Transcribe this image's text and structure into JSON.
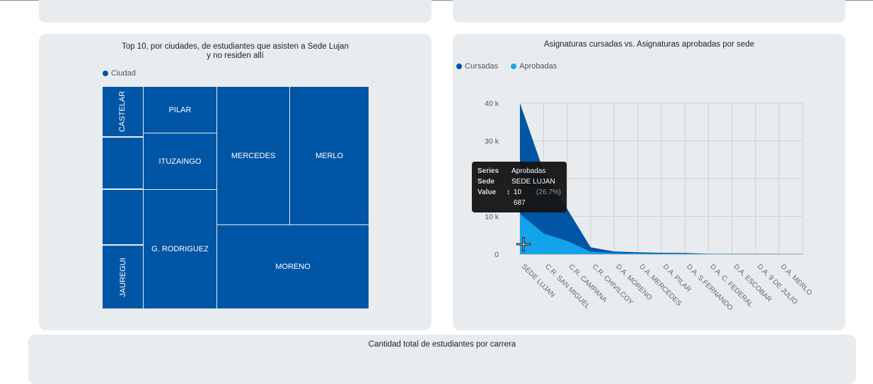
{
  "treemap_card": {
    "title": "Top 10, por ciudades, de estudiantes que asisten a Sede Lujan y no residen allí",
    "legend": [
      {
        "label": "Ciudad",
        "color": "#0055a5"
      }
    ],
    "cells": [
      {
        "label": "CASTELAR"
      },
      {
        "label": ""
      },
      {
        "label": ""
      },
      {
        "label": "JAUREGUI"
      },
      {
        "label": "PILAR"
      },
      {
        "label": "ITUZAINGO"
      },
      {
        "label": "G. RODRIGUEZ"
      },
      {
        "label": "MERCEDES"
      },
      {
        "label": "MERLO"
      },
      {
        "label": "MORENO"
      }
    ]
  },
  "area_card": {
    "title": "Asignaturas cursadas vs. Asignaturas aprobadas por sede",
    "legend": [
      {
        "label": "Cursadas",
        "color": "#0055a5"
      },
      {
        "label": "Aprobadas",
        "color": "#13a3ea"
      }
    ],
    "tooltip": {
      "series_key": "Series",
      "series_val": "Aprobadas",
      "sede_key": "Sede",
      "sede_val": "SEDE LUJAN",
      "value_key": "Value",
      "value_val": "10 687",
      "pct": "(26.7%)",
      "arrow": "↕"
    }
  },
  "bottom_card": {
    "title": "Cantidad total de estudiantes por carrera"
  },
  "chart_data": {
    "type": "area",
    "title": "Asignaturas cursadas vs. Asignaturas aprobadas por sede",
    "categories": [
      "SEDE LUJAN",
      "C.R. SAN MIGUEL",
      "C.R. CAMPANA",
      "C.R. CHIVILCOY",
      "D.A. MORENO",
      "D.A. MERCEDES",
      "D.A. PILAR",
      "D.A. S.FERNANDO",
      "D.A. C. FEDERAL",
      "D.A. ESCOBAR",
      "D.A. 9 DE JULIO",
      "D.A. MERLO"
    ],
    "series": [
      {
        "name": "Cursadas",
        "color": "#0055a5",
        "values": [
          40000,
          22000,
          12000,
          1800,
          700,
          500,
          350,
          300,
          100,
          80,
          50,
          30
        ]
      },
      {
        "name": "Aprobadas",
        "color": "#13a3ea",
        "values": [
          10687,
          5500,
          3500,
          600,
          300,
          200,
          150,
          120,
          50,
          40,
          20,
          10
        ]
      }
    ],
    "yticks": [
      {
        "v": 0,
        "label": "0"
      },
      {
        "v": 10000,
        "label": "10 k"
      },
      {
        "v": 20000,
        "label": "20 k"
      },
      {
        "v": 30000,
        "label": "30 k"
      },
      {
        "v": 40000,
        "label": "40 k"
      }
    ],
    "ylim": [
      0,
      40000
    ],
    "grid": true,
    "legend_position": "top-left"
  }
}
